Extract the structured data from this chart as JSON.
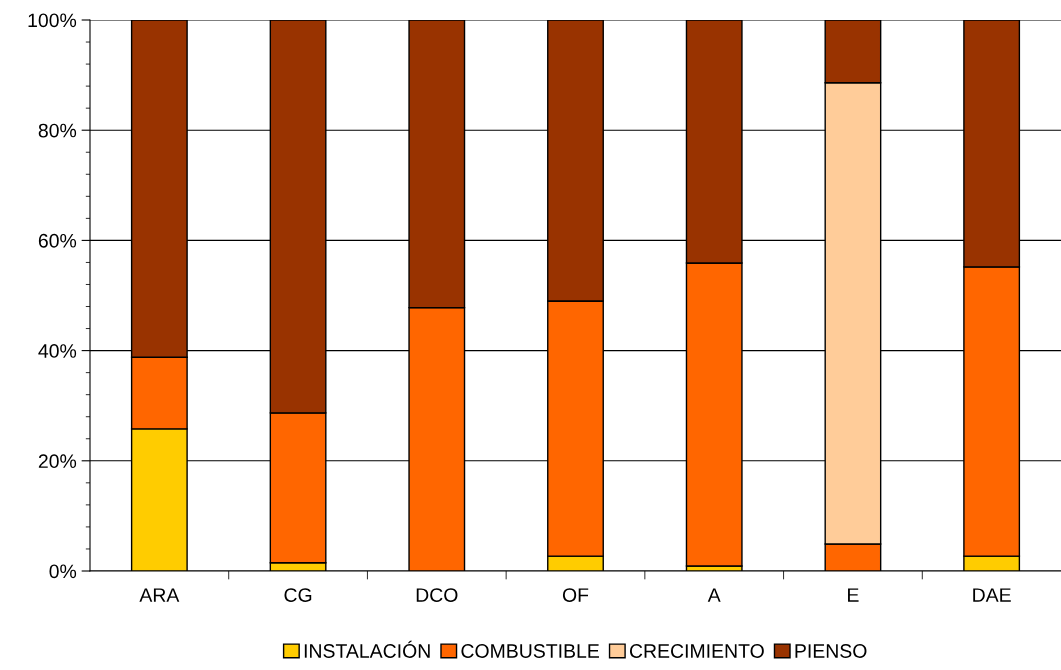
{
  "chart_data": {
    "type": "bar",
    "stacked": true,
    "categories": [
      "ARA",
      "CG",
      "DCO",
      "OF",
      "A",
      "E",
      "DAE"
    ],
    "series": [
      {
        "name": "INSTALACIÓN",
        "color": "#ffcc00",
        "values": [
          25.8,
          1.5,
          null,
          2.7,
          0.9,
          null,
          2.7
        ]
      },
      {
        "name": "COMBUSTIBLE",
        "color": "#ff6600",
        "values": [
          13.0,
          27.2,
          47.8,
          46.3,
          55.0,
          4.9,
          52.5
        ]
      },
      {
        "name": "CRECIMIENTO",
        "color": "#ffcc99",
        "values": [
          0,
          0,
          0,
          0,
          0,
          83.7,
          0
        ]
      },
      {
        "name": "PIENSO",
        "color": "#993300",
        "values": [
          61.2,
          71.3,
          52.2,
          51.0,
          44.1,
          11.4,
          44.8
        ]
      }
    ],
    "ylim": [
      0,
      100
    ],
    "yticks": [
      {
        "value": 0,
        "label": "0%"
      },
      {
        "value": 4,
        "label": null
      },
      {
        "value": 8,
        "label": null
      },
      {
        "value": 12,
        "label": null
      },
      {
        "value": 16,
        "label": null
      },
      {
        "value": 20,
        "label": "20%"
      },
      {
        "value": 24,
        "label": null
      },
      {
        "value": 28,
        "label": null
      },
      {
        "value": 32,
        "label": null
      },
      {
        "value": 36,
        "label": null
      },
      {
        "value": 40,
        "label": "40%"
      },
      {
        "value": 44,
        "label": null
      },
      {
        "value": 48,
        "label": null
      },
      {
        "value": 52,
        "label": null
      },
      {
        "value": 56,
        "label": null
      },
      {
        "value": 60,
        "label": "60%"
      },
      {
        "value": 64,
        "label": null
      },
      {
        "value": 68,
        "label": null
      },
      {
        "value": 72,
        "label": null
      },
      {
        "value": 76,
        "label": null
      },
      {
        "value": 80,
        "label": "80%"
      },
      {
        "value": 84,
        "label": null
      },
      {
        "value": 88,
        "label": null
      },
      {
        "value": 92,
        "label": null
      },
      {
        "value": 96,
        "label": null
      },
      {
        "value": 100,
        "label": "100%"
      }
    ],
    "grid": "y",
    "legend": "bottom"
  }
}
